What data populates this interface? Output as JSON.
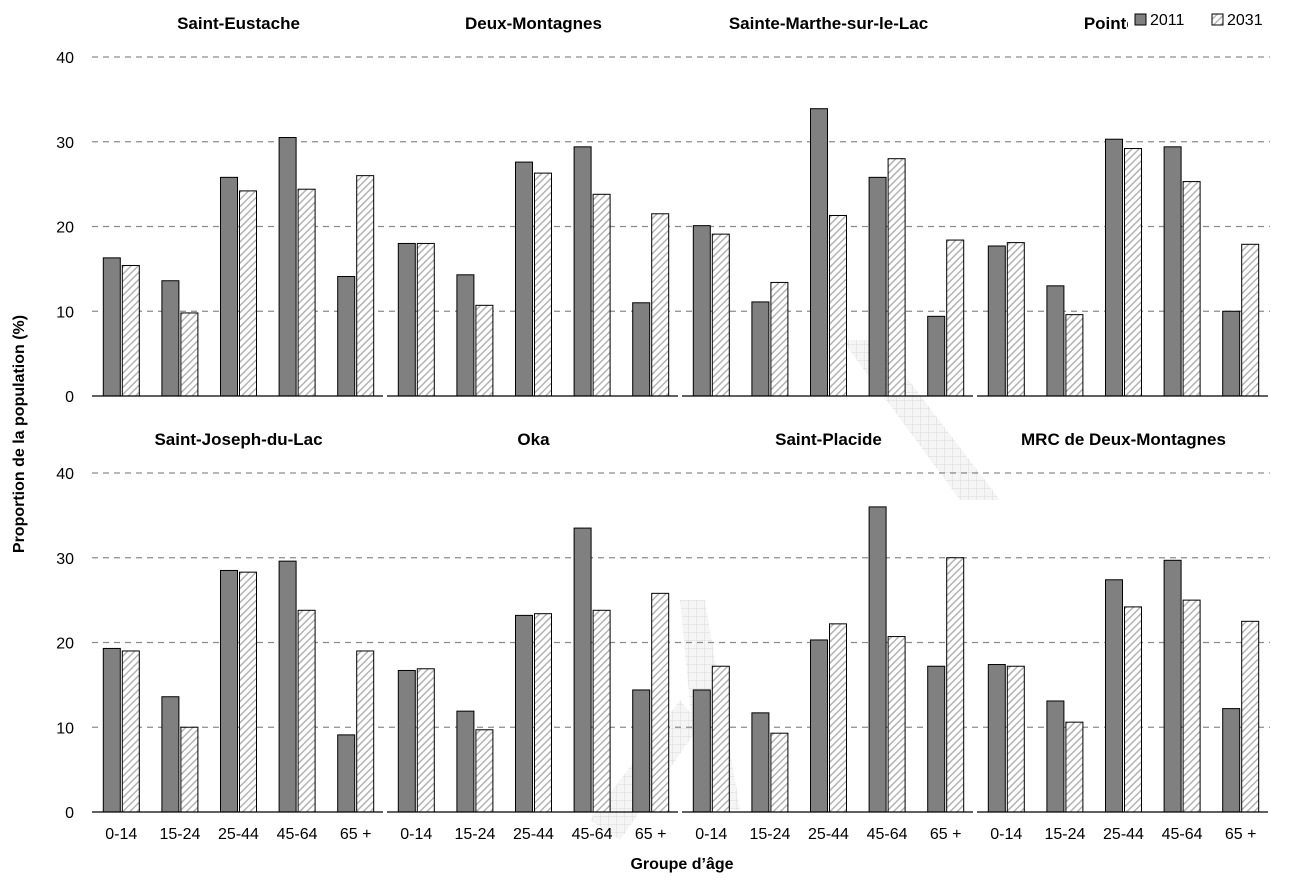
{
  "colors": {
    "bar_2011": "#808080",
    "bar_2031_hatch": "#b3b3b3",
    "stroke": "#000000",
    "grid": "#8c8c8c",
    "watermark": "#d4d4d4"
  },
  "chart_data": {
    "type": "bar",
    "xlabel": "Groupe d’âge",
    "ylabel": "Proportion de la population (%)",
    "ylim": [
      0,
      40
    ],
    "yticks": [
      0,
      10,
      20,
      30,
      40
    ],
    "categories": [
      "0-14",
      "15-24",
      "25-44",
      "45-64",
      "65 +"
    ],
    "grid": "dashed horizontal",
    "legend": {
      "placement": "top-right",
      "entries": [
        "2011",
        "2031"
      ]
    },
    "panels": [
      {
        "title": "Saint-Eustache",
        "series": [
          {
            "name": "2011",
            "values": [
              16.3,
              13.6,
              25.8,
              30.5,
              14.1
            ]
          },
          {
            "name": "2031",
            "values": [
              15.4,
              9.8,
              24.2,
              24.4,
              26.0
            ]
          }
        ]
      },
      {
        "title": "Deux-Montagnes",
        "series": [
          {
            "name": "2011",
            "values": [
              18.0,
              14.3,
              27.6,
              29.4,
              11.0
            ]
          },
          {
            "name": "2031",
            "values": [
              18.0,
              10.7,
              26.3,
              23.8,
              21.5
            ]
          }
        ]
      },
      {
        "title": "Sainte-Marthe-sur-le-Lac",
        "series": [
          {
            "name": "2011",
            "values": [
              20.1,
              11.1,
              33.9,
              25.8,
              9.4
            ]
          },
          {
            "name": "2031",
            "values": [
              19.1,
              13.4,
              21.3,
              28.0,
              18.4
            ]
          }
        ]
      },
      {
        "title": "Pointe-Ca",
        "series": [
          {
            "name": "2011",
            "values": [
              17.7,
              13.0,
              30.3,
              29.4,
              10.0
            ]
          },
          {
            "name": "2031",
            "values": [
              18.1,
              9.6,
              29.2,
              25.3,
              17.9
            ]
          }
        ]
      },
      {
        "title": "Saint-Joseph-du-Lac",
        "series": [
          {
            "name": "2011",
            "values": [
              19.3,
              13.6,
              28.5,
              29.6,
              9.1
            ]
          },
          {
            "name": "2031",
            "values": [
              19.0,
              10.0,
              28.3,
              23.8,
              19.0
            ]
          }
        ]
      },
      {
        "title": "Oka",
        "series": [
          {
            "name": "2011",
            "values": [
              16.7,
              11.9,
              23.2,
              33.5,
              14.4
            ]
          },
          {
            "name": "2031",
            "values": [
              16.9,
              9.7,
              23.4,
              23.8,
              25.8
            ]
          }
        ]
      },
      {
        "title": "Saint-Placide",
        "series": [
          {
            "name": "2011",
            "values": [
              14.4,
              11.7,
              20.3,
              36.0,
              17.2
            ]
          },
          {
            "name": "2031",
            "values": [
              17.2,
              9.3,
              22.2,
              20.7,
              30.0
            ]
          }
        ]
      },
      {
        "title": "MRC de Deux-Montagnes",
        "series": [
          {
            "name": "2011",
            "values": [
              17.4,
              13.1,
              27.4,
              29.7,
              12.2
            ]
          },
          {
            "name": "2031",
            "values": [
              17.2,
              10.6,
              24.2,
              25.0,
              22.5
            ]
          }
        ]
      }
    ]
  }
}
